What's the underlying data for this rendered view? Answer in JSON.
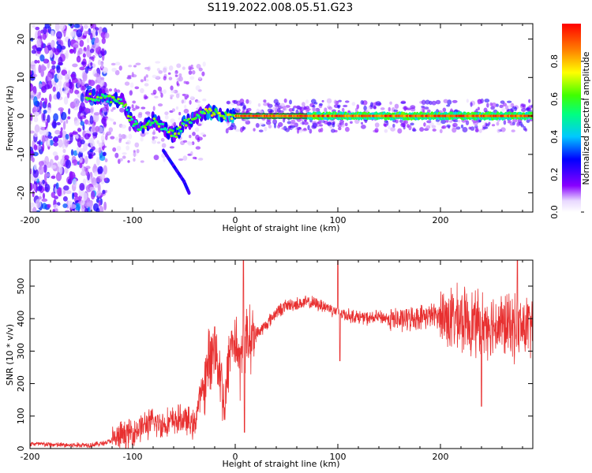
{
  "title": "S119.2022.008.05.51.G23",
  "chart_data": [
    {
      "type": "heatmap",
      "xlabel": "Height of straight line (km)",
      "ylabel": "Frequency (Hz)",
      "xlim": [
        -200,
        290
      ],
      "ylim": [
        -25,
        24
      ],
      "x_ticks": [
        "-200",
        "-100",
        "0",
        "100",
        "200"
      ],
      "y_ticks": [
        "20",
        "10",
        "0",
        "-10",
        "-20"
      ],
      "colorbar": {
        "label": "Normalized spectral amplitude",
        "range": [
          0,
          1
        ],
        "ticks": [
          "0.0",
          "0.2",
          "0.4",
          "0.6",
          "0.8"
        ],
        "colormap": "rainbow (white/violet to red)"
      },
      "ridge": [
        {
          "x": -145,
          "y": 5
        },
        {
          "x": -130,
          "y": 5
        },
        {
          "x": -120,
          "y": 4.5
        },
        {
          "x": -110,
          "y": 4
        },
        {
          "x": -100,
          "y": -2
        },
        {
          "x": -90,
          "y": -3
        },
        {
          "x": -80,
          "y": -1
        },
        {
          "x": -70,
          "y": -3
        },
        {
          "x": -60,
          "y": -5
        },
        {
          "x": -55,
          "y": -4
        },
        {
          "x": -50,
          "y": -2
        },
        {
          "x": -40,
          "y": -1
        },
        {
          "x": -30,
          "y": 1
        },
        {
          "x": -20,
          "y": 1
        },
        {
          "x": -10,
          "y": 0
        },
        {
          "x": 0,
          "y": 0
        },
        {
          "x": 50,
          "y": 0
        },
        {
          "x": 100,
          "y": 0
        },
        {
          "x": 150,
          "y": 0
        },
        {
          "x": 200,
          "y": 0
        },
        {
          "x": 250,
          "y": 0
        },
        {
          "x": 290,
          "y": 0
        }
      ],
      "branch": [
        {
          "x": -70,
          "y": -9
        },
        {
          "x": -60,
          "y": -13
        },
        {
          "x": -50,
          "y": -17
        },
        {
          "x": -45,
          "y": -20
        }
      ]
    },
    {
      "type": "line",
      "xlabel": "Height of straight line (km)",
      "ylabel": "SNR (10 * v/v)",
      "xlim": [
        -200,
        290
      ],
      "ylim": [
        0,
        580
      ],
      "x_ticks": [
        "-200",
        "-100",
        "0",
        "100",
        "200"
      ],
      "y_ticks": [
        "0",
        "100",
        "200",
        "300",
        "400",
        "500"
      ],
      "color": "#e83030",
      "series": [
        {
          "x": [
            -200,
            -180,
            -160,
            -140,
            -130,
            -120,
            -110,
            -100,
            -90,
            -80,
            -70,
            -60,
            -50,
            -40,
            -35,
            -30,
            -25,
            -20,
            -15,
            -10,
            -5,
            0,
            5,
            10,
            15,
            20,
            30,
            40,
            50,
            60,
            70,
            80,
            90,
            100,
            110,
            120,
            130,
            140,
            150,
            160,
            170,
            180,
            190,
            200,
            210,
            220,
            230,
            240,
            250,
            260,
            270,
            280,
            290
          ],
          "values": [
            15,
            12,
            10,
            12,
            15,
            25,
            40,
            50,
            70,
            80,
            75,
            85,
            90,
            70,
            150,
            200,
            280,
            300,
            250,
            120,
            320,
            340,
            250,
            330,
            340,
            350,
            380,
            420,
            440,
            445,
            450,
            445,
            435,
            420,
            410,
            405,
            400,
            405,
            400,
            395,
            400,
            405,
            410,
            410,
            400,
            395,
            390,
            385,
            385,
            380,
            375,
            370,
            380
          ]
        }
      ],
      "spikes": [
        {
          "x": 8,
          "y": 580
        },
        {
          "x": 9,
          "y": 50
        },
        {
          "x": 100,
          "y": 580
        },
        {
          "x": 102,
          "y": 270
        },
        {
          "x": 240,
          "y": 130
        },
        {
          "x": 275,
          "y": 580
        },
        {
          "x": -20,
          "y": 375
        }
      ]
    }
  ]
}
